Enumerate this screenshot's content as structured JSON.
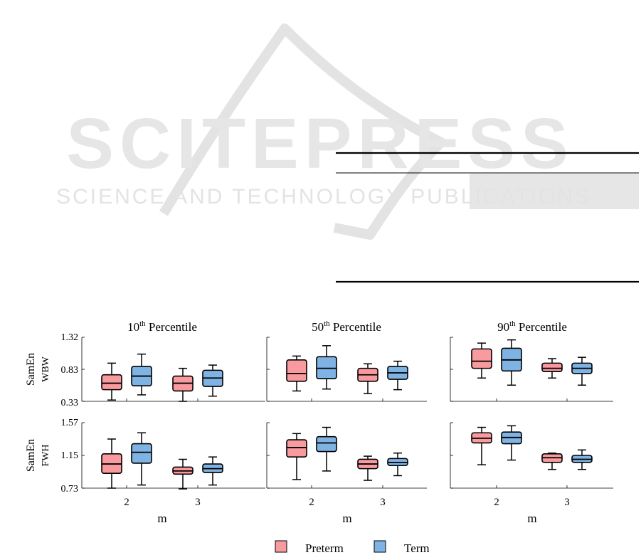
{
  "publisher_watermark": {
    "logo_text": "SCITEPRESS",
    "tagline": "SCIENCE AND TECHNOLOGY PUBLICATIONS"
  },
  "chart_data": {
    "type": "boxplot",
    "xlabel": "m",
    "categories": [
      "2",
      "3"
    ],
    "legend": {
      "placement": "bottom-center",
      "items": [
        {
          "name": "Preterm",
          "color": "#f99a9e"
        },
        {
          "name": "Term",
          "color": "#7fb3e3"
        }
      ]
    },
    "columns": [
      {
        "title_base": "10",
        "title_sup": "th",
        "title_rest": " Percentile"
      },
      {
        "title_base": "50",
        "title_sup": "th",
        "title_rest": " Percentile"
      },
      {
        "title_base": "90",
        "title_sup": "th",
        "title_rest": " Percentile"
      }
    ],
    "rows": [
      {
        "ylabel_line1": "SamEn",
        "ylabel_line2": "WBW",
        "ylim": [
          0.33,
          1.32
        ],
        "yticks": [
          "0.33",
          "0.83",
          "1.32"
        ]
      },
      {
        "ylabel_line1": "SamEn",
        "ylabel_line2": "FWH",
        "ylim": [
          0.73,
          1.57
        ],
        "yticks": [
          "0.73",
          "1.15",
          "1.57"
        ]
      }
    ],
    "panels": [
      {
        "row": 0,
        "col": 0,
        "boxes": [
          {
            "m": "2",
            "series": "Preterm",
            "min": 0.35,
            "q1": 0.51,
            "median": 0.61,
            "q3": 0.74,
            "max": 0.92
          },
          {
            "m": "2",
            "series": "Term",
            "min": 0.43,
            "q1": 0.57,
            "median": 0.72,
            "q3": 0.87,
            "max": 1.06
          },
          {
            "m": "3",
            "series": "Preterm",
            "min": 0.33,
            "q1": 0.49,
            "median": 0.61,
            "q3": 0.72,
            "max": 0.84
          },
          {
            "m": "3",
            "series": "Term",
            "min": 0.41,
            "q1": 0.56,
            "median": 0.69,
            "q3": 0.81,
            "max": 0.89
          }
        ]
      },
      {
        "row": 0,
        "col": 1,
        "boxes": [
          {
            "m": "2",
            "series": "Preterm",
            "min": 0.49,
            "q1": 0.64,
            "median": 0.76,
            "q3": 0.97,
            "max": 1.03
          },
          {
            "m": "2",
            "series": "Term",
            "min": 0.52,
            "q1": 0.68,
            "median": 0.84,
            "q3": 1.02,
            "max": 1.19
          },
          {
            "m": "3",
            "series": "Preterm",
            "min": 0.45,
            "q1": 0.64,
            "median": 0.74,
            "q3": 0.84,
            "max": 0.91
          },
          {
            "m": "3",
            "series": "Term",
            "min": 0.51,
            "q1": 0.67,
            "median": 0.77,
            "q3": 0.87,
            "max": 0.95
          }
        ]
      },
      {
        "row": 0,
        "col": 2,
        "boxes": [
          {
            "m": "2",
            "series": "Preterm",
            "min": 0.69,
            "q1": 0.84,
            "median": 0.95,
            "q3": 1.14,
            "max": 1.23
          },
          {
            "m": "2",
            "series": "Term",
            "min": 0.58,
            "q1": 0.8,
            "median": 0.97,
            "q3": 1.15,
            "max": 1.28
          },
          {
            "m": "3",
            "series": "Preterm",
            "min": 0.69,
            "q1": 0.79,
            "median": 0.84,
            "q3": 0.92,
            "max": 0.99
          },
          {
            "m": "3",
            "series": "Term",
            "min": 0.58,
            "q1": 0.76,
            "median": 0.84,
            "q3": 0.92,
            "max": 1.01
          }
        ]
      },
      {
        "row": 1,
        "col": 0,
        "boxes": [
          {
            "m": "2",
            "series": "Preterm",
            "min": 0.73,
            "q1": 0.92,
            "median": 1.04,
            "q3": 1.17,
            "max": 1.36
          },
          {
            "m": "2",
            "series": "Term",
            "min": 0.77,
            "q1": 1.05,
            "median": 1.19,
            "q3": 1.3,
            "max": 1.44
          },
          {
            "m": "3",
            "series": "Preterm",
            "min": 0.72,
            "q1": 0.91,
            "median": 0.95,
            "q3": 1.0,
            "max": 1.1
          },
          {
            "m": "3",
            "series": "Term",
            "min": 0.77,
            "q1": 0.93,
            "median": 0.98,
            "q3": 1.04,
            "max": 1.13
          }
        ]
      },
      {
        "row": 1,
        "col": 1,
        "boxes": [
          {
            "m": "2",
            "series": "Preterm",
            "min": 0.84,
            "q1": 1.13,
            "median": 1.25,
            "q3": 1.35,
            "max": 1.43
          },
          {
            "m": "2",
            "series": "Term",
            "min": 0.95,
            "q1": 1.2,
            "median": 1.31,
            "q3": 1.39,
            "max": 1.51
          },
          {
            "m": "3",
            "series": "Preterm",
            "min": 0.83,
            "q1": 0.98,
            "median": 1.04,
            "q3": 1.1,
            "max": 1.14
          },
          {
            "m": "3",
            "series": "Term",
            "min": 0.89,
            "q1": 1.02,
            "median": 1.06,
            "q3": 1.11,
            "max": 1.18
          }
        ]
      },
      {
        "row": 1,
        "col": 2,
        "boxes": [
          {
            "m": "2",
            "series": "Preterm",
            "min": 1.03,
            "q1": 1.31,
            "median": 1.37,
            "q3": 1.44,
            "max": 1.51
          },
          {
            "m": "2",
            "series": "Term",
            "min": 1.09,
            "q1": 1.3,
            "median": 1.38,
            "q3": 1.45,
            "max": 1.53
          },
          {
            "m": "3",
            "series": "Preterm",
            "min": 0.97,
            "q1": 1.06,
            "median": 1.12,
            "q3": 1.17,
            "max": 1.18
          },
          {
            "m": "3",
            "series": "Term",
            "min": 0.97,
            "q1": 1.06,
            "median": 1.1,
            "q3": 1.15,
            "max": 1.22
          }
        ]
      }
    ]
  }
}
